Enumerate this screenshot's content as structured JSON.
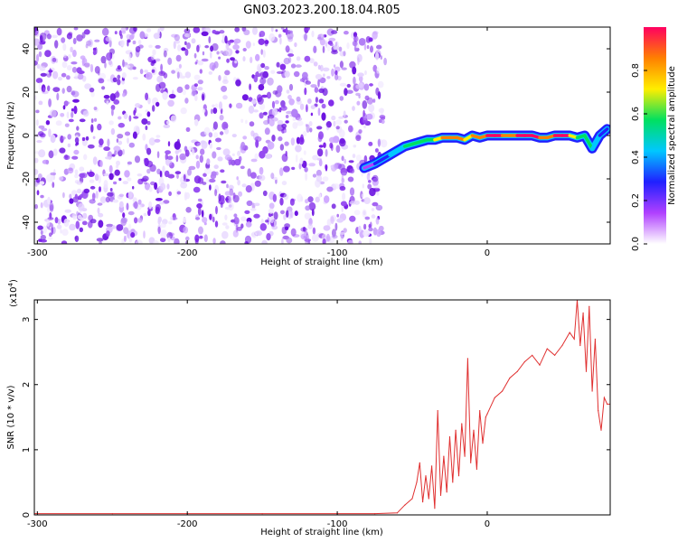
{
  "figure_title": "GN03.2023.200.18.04.R05",
  "chart_data": [
    {
      "type": "heatmap",
      "xlabel": "Height of straight line (km)",
      "ylabel": "Frequency (Hz)",
      "xlim": [
        -302,
        82
      ],
      "ylim": [
        -50,
        50
      ],
      "x_ticks": [
        -300,
        -200,
        -100,
        0
      ],
      "y_ticks": [
        -40,
        -20,
        0,
        20,
        40
      ],
      "noise_region_x": [
        -302,
        -70
      ],
      "ridge": {
        "x": [
          -82,
          -75,
          -70,
          -65,
          -60,
          -55,
          -50,
          -45,
          -40,
          -35,
          -30,
          -25,
          -20,
          -15,
          -10,
          -5,
          0,
          5,
          10,
          15,
          20,
          25,
          30,
          35,
          40,
          45,
          50,
          55,
          60,
          65,
          70,
          75,
          80
        ],
        "y": [
          -15,
          -13,
          -11,
          -9,
          -7,
          -5,
          -4,
          -3,
          -2,
          -2,
          -1,
          -1,
          -1,
          -2,
          0,
          -1,
          0,
          0,
          0,
          0,
          0,
          0,
          0,
          -1,
          -1,
          0,
          0,
          0,
          -1,
          0,
          -6,
          0,
          3
        ],
        "amplitude": [
          0.15,
          0.25,
          0.35,
          0.4,
          0.45,
          0.5,
          0.55,
          0.55,
          0.6,
          0.7,
          0.8,
          0.85,
          0.8,
          0.7,
          0.85,
          0.9,
          0.95,
          0.95,
          0.9,
          0.9,
          0.95,
          0.95,
          0.95,
          0.9,
          0.9,
          0.95,
          0.95,
          0.7,
          0.5,
          0.55,
          0.4,
          0.3,
          0.5
        ]
      },
      "colorbar": {
        "label": "Normalized spectral amplitude",
        "range": [
          0.0,
          1.0
        ],
        "ticks": [
          "0.0",
          "0.2",
          "0.4",
          "0.6",
          "0.8"
        ],
        "colors": [
          "#ffffff",
          "#b040ff",
          "#2020ff",
          "#00c8ff",
          "#00e060",
          "#ffee00",
          "#ff8000",
          "#ff0060"
        ]
      }
    },
    {
      "type": "line",
      "xlabel": "Height of straight line (km)",
      "ylabel": "SNR (10 * v/v)",
      "y_scale_label": "(x10",
      "y_scale_exp": "4",
      "xlim": [
        -302,
        82
      ],
      "ylim": [
        0,
        3.3
      ],
      "x_ticks": [
        -300,
        -200,
        -100,
        0
      ],
      "y_ticks": [
        0,
        1,
        2,
        3
      ],
      "series": [
        {
          "color": "#e03030",
          "x": [
            -302,
            -250,
            -200,
            -150,
            -100,
            -75,
            -60,
            -55,
            -50,
            -47,
            -45,
            -43,
            -41,
            -39,
            -37,
            -35,
            -33,
            -31,
            -29,
            -27,
            -25,
            -23,
            -21,
            -19,
            -17,
            -15,
            -13,
            -11,
            -9,
            -7,
            -5,
            -3,
            -1,
            0,
            5,
            10,
            15,
            20,
            25,
            30,
            35,
            40,
            45,
            50,
            55,
            58,
            60,
            62,
            64,
            66,
            68,
            70,
            72,
            74,
            76,
            78,
            80,
            82
          ],
          "y": [
            0.02,
            0.02,
            0.02,
            0.02,
            0.02,
            0.02,
            0.03,
            0.15,
            0.25,
            0.5,
            0.8,
            0.2,
            0.6,
            0.25,
            0.75,
            0.1,
            1.6,
            0.3,
            0.9,
            0.35,
            1.2,
            0.5,
            1.3,
            0.6,
            1.4,
            0.9,
            2.4,
            0.8,
            1.3,
            0.7,
            1.6,
            1.1,
            1.5,
            1.55,
            1.8,
            1.9,
            2.1,
            2.2,
            2.35,
            2.45,
            2.3,
            2.55,
            2.45,
            2.6,
            2.8,
            2.7,
            3.3,
            2.6,
            3.1,
            2.2,
            3.2,
            1.9,
            2.7,
            1.6,
            1.3,
            1.8,
            1.7,
            1.7
          ]
        }
      ]
    }
  ]
}
